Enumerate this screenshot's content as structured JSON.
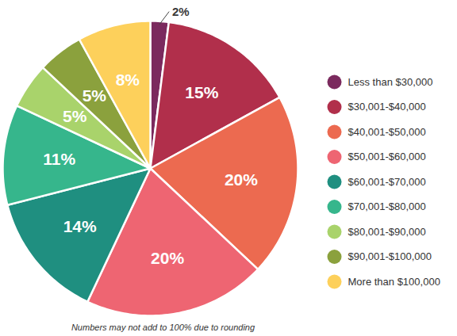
{
  "chart_data": {
    "type": "pie",
    "categories": [
      "Less than $30,000",
      "$30,001-$40,000",
      "$40,001-$50,000",
      "$50,001-$60,000",
      "$60,001-$70,000",
      "$70,001-$80,000",
      "$80,001-$90,000",
      "$90,001-$100,000",
      "More than $100,000"
    ],
    "values": [
      2,
      15,
      20,
      20,
      14,
      11,
      5,
      5,
      8
    ],
    "value_labels": [
      "2%",
      "15%",
      "20%",
      "20%",
      "14%",
      "11%",
      "5%",
      "5%",
      "8%"
    ],
    "colors": [
      "#7b2a5e",
      "#b12f4b",
      "#ec6a50",
      "#ee6572",
      "#1f8f80",
      "#36b68c",
      "#a9d36b",
      "#8ba13d",
      "#fdd05b"
    ],
    "data_labels": true,
    "legend": "right",
    "annotations": [
      "Numbers may not add to 100% due to rounding"
    ]
  }
}
